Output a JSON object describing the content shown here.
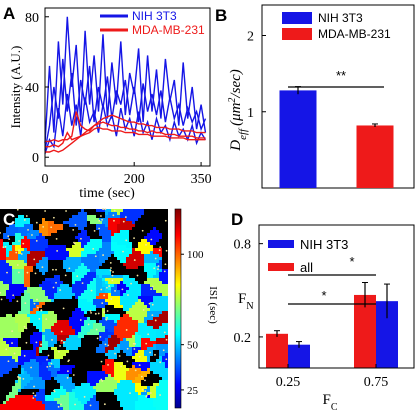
{
  "panels": {
    "A": {
      "letter": "A"
    },
    "B": {
      "letter": "B"
    },
    "C": {
      "letter": "C"
    },
    "D": {
      "letter": "D"
    }
  },
  "colors": {
    "nih": "#1515e6",
    "mda": "#ee1a1a",
    "black": "#000000"
  },
  "chart_data": [
    {
      "panel": "A",
      "type": "line",
      "xlabel": "time (sec)",
      "ylabel": "Intensity (A.U.)",
      "xlim": [
        0,
        370
      ],
      "ylim": [
        -5,
        85
      ],
      "xticks": [
        0,
        200,
        350
      ],
      "yticks": [
        0,
        40,
        80
      ],
      "xtick_labels": [
        "0",
        "200",
        "350"
      ],
      "ytick_labels": [
        "0",
        "40",
        "80"
      ],
      "legend": [
        "NIH 3T3",
        "MDA-MB-231"
      ],
      "legend_position": "top-right",
      "series": [
        {
          "name": "NIH 3T3",
          "color": "#1515e6",
          "x": [
            0,
            10,
            20,
            30,
            40,
            50,
            60,
            70,
            80,
            90,
            100,
            110,
            120,
            130,
            140,
            150,
            160,
            170,
            180,
            190,
            200,
            210,
            220,
            230,
            240,
            250,
            260,
            270,
            280,
            290,
            300,
            310,
            320,
            330,
            340,
            350,
            360
          ],
          "y": [
            8,
            52,
            14,
            66,
            30,
            80,
            40,
            64,
            20,
            72,
            30,
            58,
            26,
            70,
            22,
            54,
            30,
            66,
            24,
            48,
            36,
            62,
            20,
            58,
            26,
            50,
            22,
            56,
            32,
            44,
            18,
            54,
            22,
            40,
            16,
            30,
            14
          ]
        },
        {
          "name": "",
          "color": "#1515e6",
          "x": [
            0,
            10,
            20,
            30,
            40,
            50,
            60,
            70,
            80,
            90,
            100,
            110,
            120,
            130,
            140,
            150,
            160,
            170,
            180,
            190,
            200,
            210,
            220,
            230,
            240,
            250,
            260,
            270,
            280,
            290,
            300,
            310,
            320,
            330,
            340,
            350,
            360
          ],
          "y": [
            4,
            18,
            40,
            22,
            56,
            26,
            48,
            18,
            44,
            30,
            52,
            20,
            40,
            28,
            46,
            22,
            38,
            30,
            44,
            24,
            40,
            20,
            42,
            26,
            36,
            24,
            38,
            20,
            34,
            22,
            30,
            18,
            28,
            20,
            26,
            16,
            22
          ]
        },
        {
          "name": "",
          "color": "#1515e6",
          "x": [
            0,
            10,
            20,
            30,
            40,
            50,
            60,
            70,
            80,
            90,
            100,
            110,
            120,
            130,
            140,
            150,
            160,
            170,
            180,
            190,
            200,
            210,
            220,
            230,
            240,
            250,
            260,
            270,
            280,
            290,
            300,
            310,
            320,
            330,
            340,
            350,
            360
          ],
          "y": [
            2,
            10,
            6,
            28,
            12,
            36,
            18,
            30,
            12,
            34,
            20,
            26,
            14,
            30,
            18,
            24,
            12,
            28,
            16,
            22,
            12,
            26,
            14,
            20,
            10,
            22,
            14,
            18,
            10,
            20,
            12,
            16,
            10,
            18,
            8,
            14,
            10
          ]
        },
        {
          "name": "MDA-MB-231",
          "color": "#ee1a1a",
          "x": [
            0,
            10,
            20,
            30,
            40,
            50,
            60,
            70,
            80,
            90,
            100,
            110,
            120,
            130,
            140,
            150,
            160,
            170,
            180,
            190,
            200,
            210,
            220,
            230,
            240,
            250,
            260,
            270,
            280,
            290,
            300,
            310,
            320,
            330,
            340,
            350,
            360
          ],
          "y": [
            9,
            9,
            10,
            9,
            10,
            10,
            12,
            26,
            18,
            16,
            15,
            18,
            20,
            22,
            23,
            24,
            23,
            22,
            21,
            20,
            20,
            19,
            19,
            18,
            18,
            17,
            17,
            17,
            16,
            16,
            16,
            15,
            15,
            15,
            14,
            14,
            14
          ]
        },
        {
          "name": "",
          "color": "#ee1a1a",
          "x": [
            0,
            10,
            20,
            30,
            40,
            50,
            60,
            70,
            80,
            90,
            100,
            110,
            120,
            130,
            140,
            150,
            160,
            170,
            180,
            190,
            200,
            210,
            220,
            230,
            240,
            250,
            260,
            270,
            280,
            290,
            300,
            310,
            320,
            330,
            340,
            350,
            360
          ],
          "y": [
            6,
            6,
            7,
            6,
            8,
            14,
            10,
            11,
            12,
            14,
            16,
            18,
            19,
            20,
            19,
            18,
            18,
            17,
            17,
            16,
            16,
            15,
            15,
            14,
            15,
            14,
            14,
            13,
            13,
            13,
            12,
            12,
            12,
            12,
            11,
            11,
            11
          ]
        },
        {
          "name": "",
          "color": "#ee1a1a",
          "x": [
            0,
            10,
            20,
            30,
            40,
            50,
            60,
            70,
            80,
            90,
            100,
            110,
            120,
            130,
            140,
            150,
            160,
            170,
            180,
            190,
            200,
            210,
            220,
            230,
            240,
            250,
            260,
            270,
            280,
            290,
            300,
            310,
            320,
            330,
            340,
            350,
            360
          ],
          "y": [
            3,
            3,
            4,
            3,
            4,
            6,
            8,
            10,
            12,
            13,
            14,
            16,
            17,
            16,
            16,
            15,
            15,
            15,
            14,
            14,
            14,
            13,
            13,
            13,
            12,
            12,
            12,
            12,
            11,
            11,
            11,
            11,
            10,
            10,
            10,
            10,
            10
          ]
        }
      ]
    },
    {
      "panel": "B",
      "type": "bar",
      "ylabel": "D_eff (μm²/sec)",
      "ylabel_main": "D",
      "ylabel_sub": "eff",
      "ylabel_rest": "(μm",
      "ylabel_sup": "2",
      "ylabel_end": "/sec)",
      "categories": [
        "NIH 3T3",
        "MDA-MB-231"
      ],
      "values": [
        1.28,
        0.82
      ],
      "errors": [
        0.05,
        0.02
      ],
      "colors": [
        "#1515e6",
        "#ee1a1a"
      ],
      "ylim": [
        0,
        2.4
      ],
      "yticks": [
        1,
        2
      ],
      "ytick_labels": [
        "1",
        "2"
      ],
      "legend": [
        "NIH 3T3",
        "MDA-MB-231"
      ],
      "legend_position": "top",
      "significance": "**"
    },
    {
      "panel": "D",
      "type": "bar",
      "xlabel_main": "F",
      "xlabel_sub": "C",
      "ylabel_main": "F",
      "ylabel_sub": "N",
      "categories": [
        "0.25",
        "0.75"
      ],
      "series": [
        {
          "name": "all",
          "color": "#ee1a1a",
          "values": [
            0.22,
            0.47
          ],
          "errors": [
            0.02,
            0.08
          ]
        },
        {
          "name": "NIH 3T3",
          "color": "#1515e6",
          "values": [
            0.15,
            0.43
          ],
          "errors": [
            0.02,
            0.11
          ]
        }
      ],
      "ylim": [
        0,
        0.92
      ],
      "yticks": [
        0.2,
        0.8
      ],
      "ytick_labels": [
        "0.2",
        "0.8"
      ],
      "legend": [
        "NIH 3T3",
        "all"
      ],
      "legend_position": "top-left",
      "significance": [
        "*",
        "*"
      ]
    }
  ],
  "colorbar": {
    "label": "ISI (sec)",
    "ticks": [
      25,
      50,
      100
    ],
    "tick_labels": [
      "25",
      "50",
      "100"
    ],
    "range": [
      15,
      125
    ]
  }
}
